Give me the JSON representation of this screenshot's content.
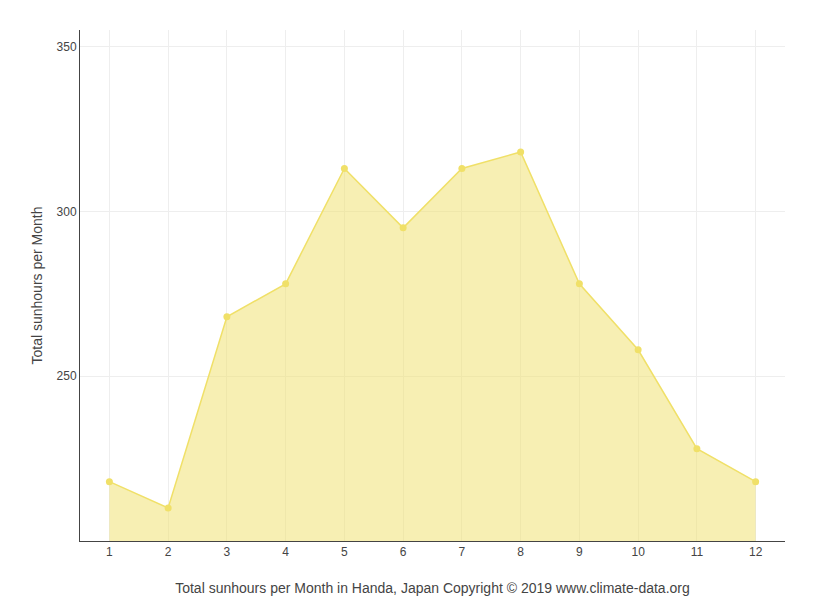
{
  "chart_data": {
    "type": "area",
    "x": [
      1,
      2,
      3,
      4,
      5,
      6,
      7,
      8,
      9,
      10,
      11,
      12
    ],
    "values": [
      218,
      210,
      268,
      278,
      313,
      295,
      313,
      318,
      278,
      258,
      228,
      218
    ],
    "color": "#F0E068",
    "marker": "circle",
    "xlabel": "Total sunhours per Month in Handa, Japan Copyright © 2019 www.climate-data.org",
    "ylabel": "Total sunhours per Month",
    "xlim": [
      0.5,
      12.5
    ],
    "ylim": [
      200,
      355
    ],
    "xticks": [
      1,
      2,
      3,
      4,
      5,
      6,
      7,
      8,
      9,
      10,
      11,
      12
    ],
    "yticks": [
      250,
      300,
      350
    ],
    "grid": true
  }
}
